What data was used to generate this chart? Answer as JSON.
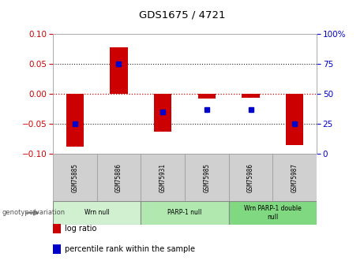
{
  "title": "GDS1675 / 4721",
  "samples": [
    "GSM75885",
    "GSM75886",
    "GSM75931",
    "GSM75985",
    "GSM75986",
    "GSM75987"
  ],
  "log_ratios": [
    -0.088,
    0.078,
    -0.063,
    -0.008,
    -0.007,
    -0.085
  ],
  "percentile_ranks": [
    25,
    75,
    35,
    37,
    37,
    25
  ],
  "ylim_left": [
    -0.1,
    0.1
  ],
  "ylim_right": [
    0,
    100
  ],
  "yticks_left": [
    -0.1,
    -0.05,
    0,
    0.05,
    0.1
  ],
  "yticks_right": [
    0,
    25,
    50,
    75,
    100
  ],
  "groups": [
    {
      "label": "Wrn null",
      "samples": [
        0,
        1
      ],
      "color": "#d0f0d0"
    },
    {
      "label": "PARP-1 null",
      "samples": [
        2,
        3
      ],
      "color": "#b0e8b0"
    },
    {
      "label": "Wrn PARP-1 double\nnull",
      "samples": [
        4,
        5
      ],
      "color": "#80d880"
    }
  ],
  "bar_color": "#cc0000",
  "dot_color": "#0000cc",
  "bar_width": 0.4,
  "hline_color": "#cc0000",
  "grid_color": "#222222",
  "bg_color": "#ffffff",
  "plot_bg": "#ffffff",
  "left_label_color": "#cc0000",
  "right_label_color": "#0000cc",
  "cell_color": "#d0d0d0",
  "cell_edge_color": "#999999",
  "legend_items": [
    "log ratio",
    "percentile rank within the sample"
  ],
  "legend_colors": [
    "#cc0000",
    "#0000cc"
  ],
  "genotype_label": "genotype/variation"
}
